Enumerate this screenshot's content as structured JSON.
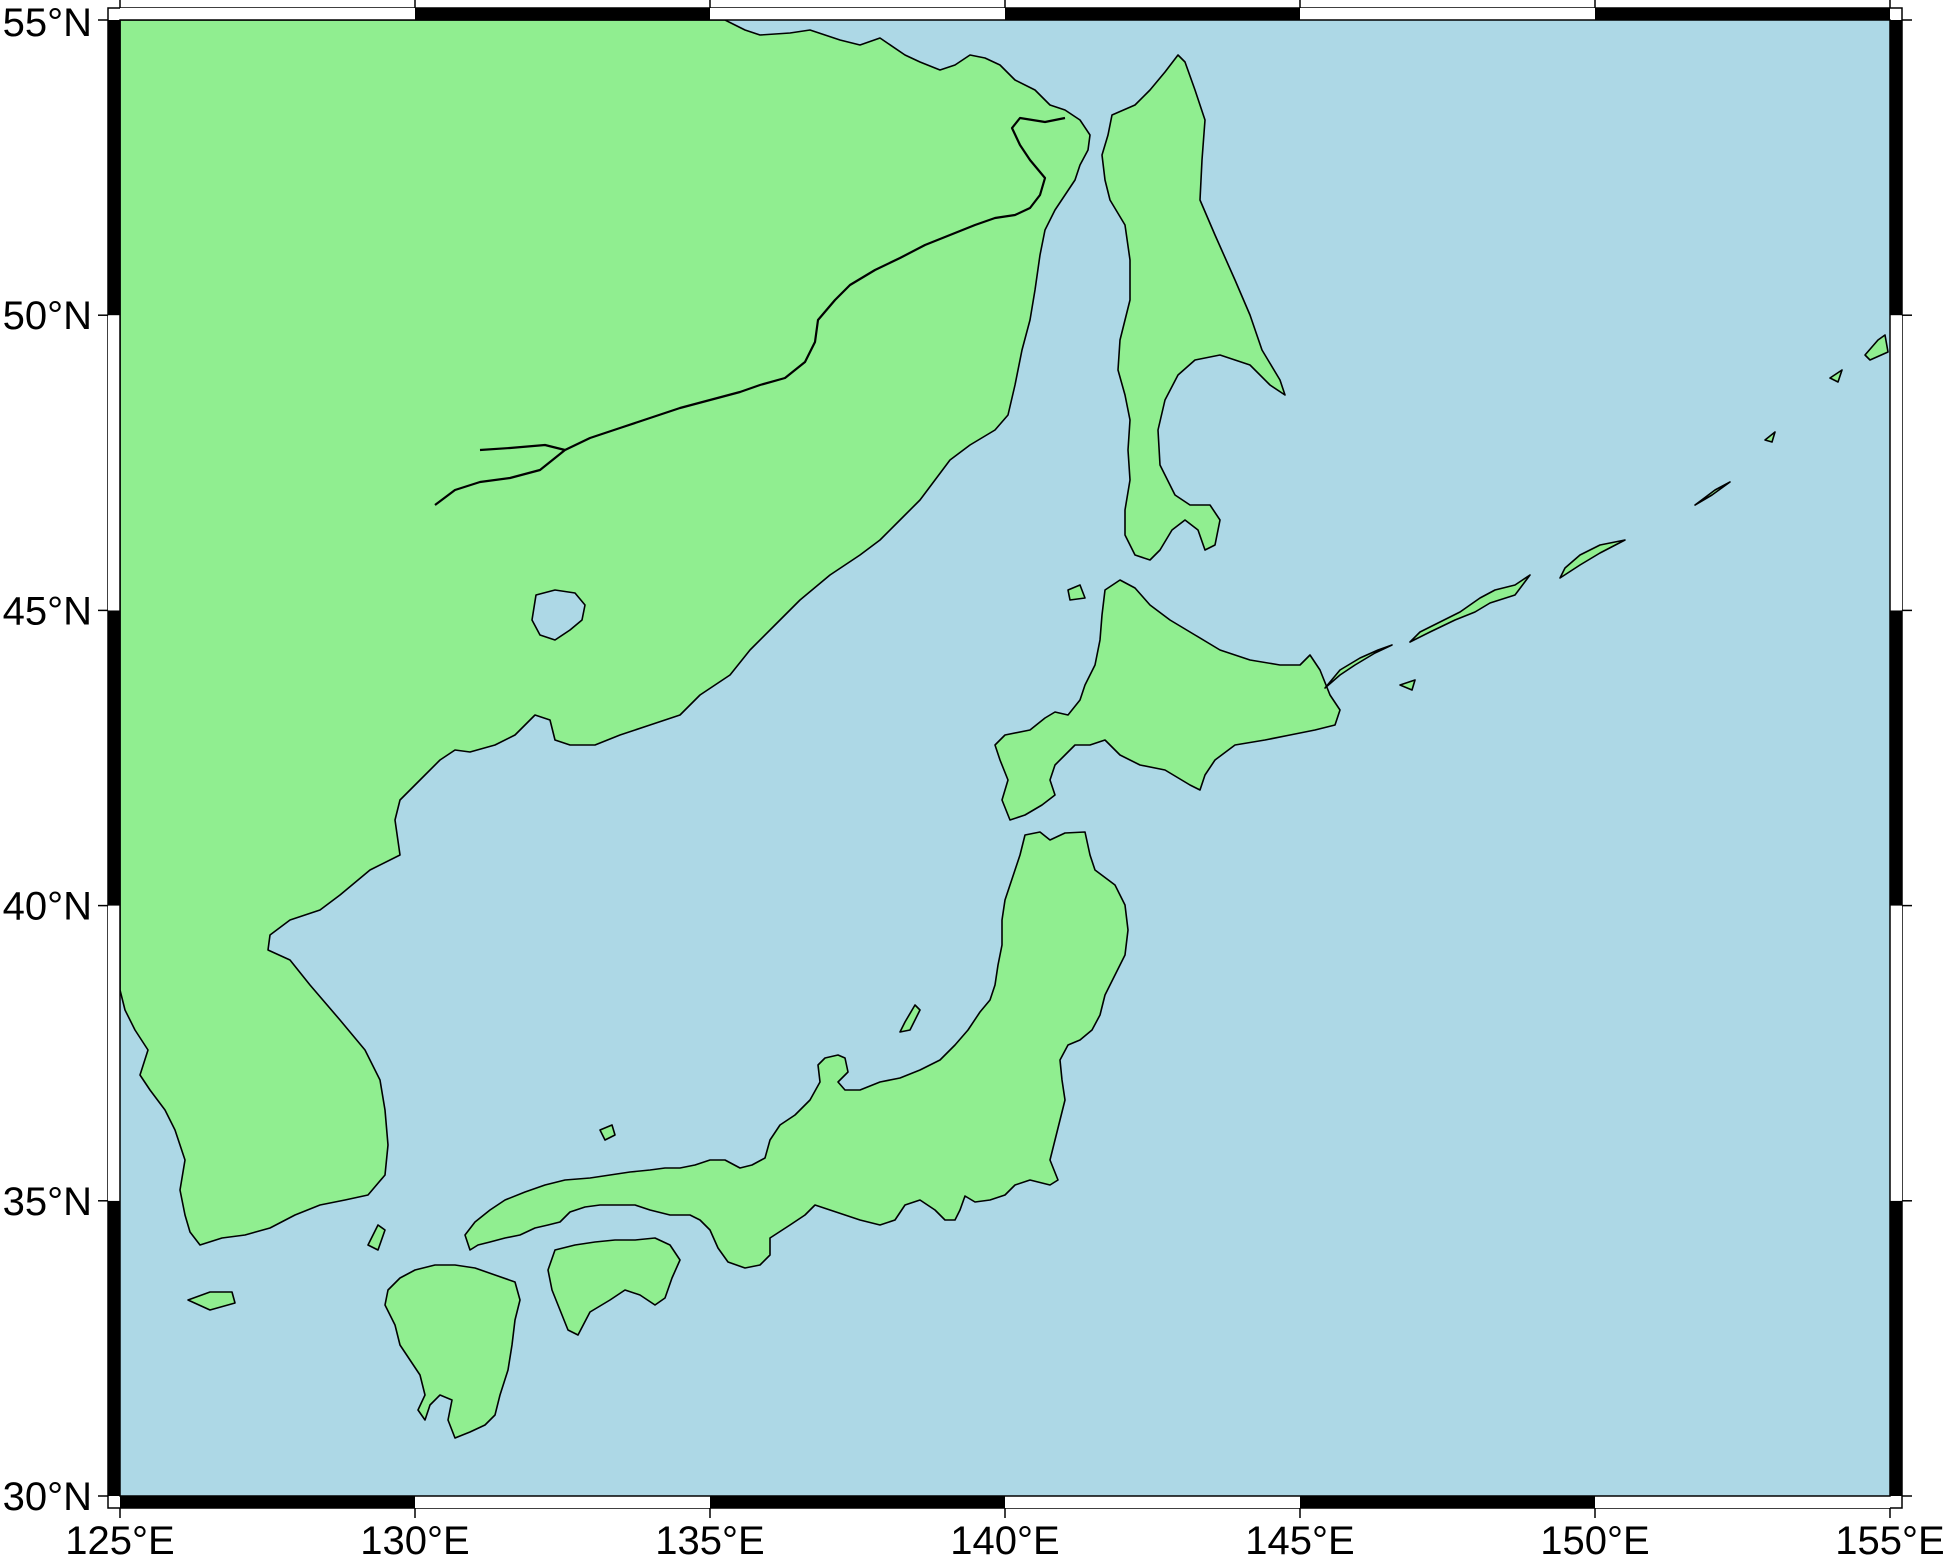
{
  "map": {
    "region": {
      "lon_min": 125,
      "lon_max": 155,
      "lat_min": 30,
      "lat_max": 55
    },
    "colors": {
      "water": "#add8e6",
      "land": "#90ee90",
      "coastline": "#000000",
      "frame_dark": "#000000",
      "frame_light": "#ffffff"
    },
    "longitude_labels": [
      {
        "value": 125,
        "text": "125°E"
      },
      {
        "value": 130,
        "text": "130°E"
      },
      {
        "value": 135,
        "text": "135°E"
      },
      {
        "value": 140,
        "text": "140°E"
      },
      {
        "value": 145,
        "text": "145°E"
      },
      {
        "value": 150,
        "text": "150°E"
      },
      {
        "value": 155,
        "text": "155°E"
      }
    ],
    "latitude_labels": [
      {
        "value": 30,
        "text": "30°N"
      },
      {
        "value": 35,
        "text": "35°N"
      },
      {
        "value": 40,
        "text": "40°N"
      },
      {
        "value": 45,
        "text": "45°N"
      },
      {
        "value": 50,
        "text": "50°N"
      },
      {
        "value": 55,
        "text": "55°N"
      }
    ]
  }
}
